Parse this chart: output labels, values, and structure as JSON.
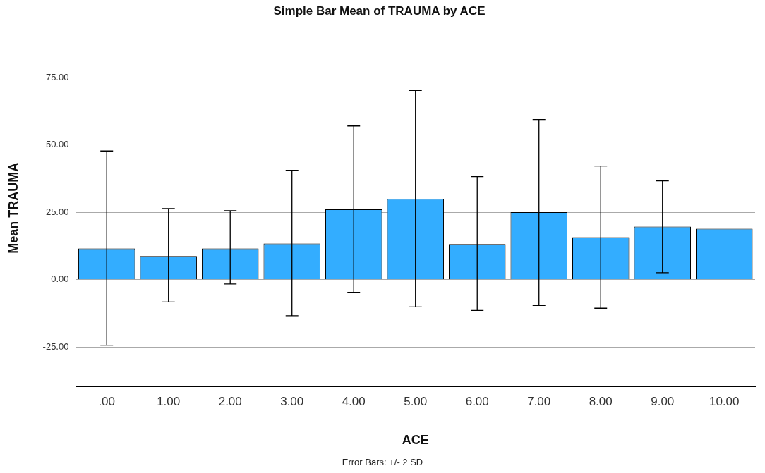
{
  "chart_data": {
    "type": "bar",
    "title": "Simple Bar Mean of TRAUMA by ACE",
    "xlabel": "ACE",
    "ylabel": "Mean TRAUMA",
    "categories": [
      ".00",
      "1.00",
      "2.00",
      "3.00",
      "4.00",
      "5.00",
      "6.00",
      "7.00",
      "8.00",
      "9.00",
      "10.00"
    ],
    "values": [
      11.6,
      8.8,
      11.6,
      13.4,
      26.1,
      30.0,
      13.2,
      25.1,
      15.8,
      19.7,
      18.9
    ],
    "errors": [
      [
        -24.3,
        47.8
      ],
      [
        -8.3,
        26.4
      ],
      [
        -1.6,
        25.6
      ],
      [
        -13.4,
        40.6
      ],
      [
        -4.7,
        57.1
      ],
      [
        -10.1,
        70.3
      ],
      [
        -11.4,
        38.3
      ],
      [
        -9.6,
        59.5
      ],
      [
        -10.6,
        42.2
      ],
      [
        2.6,
        36.7
      ],
      null
    ],
    "color": "#33adff",
    "ylim": [
      -39.6,
      92.8
    ],
    "yticks": [
      {
        "value": -25,
        "label": "-25.00"
      },
      {
        "value": 0,
        "label": "0.00"
      },
      {
        "value": 25,
        "label": "25.00"
      },
      {
        "value": 50,
        "label": "50.00"
      },
      {
        "value": 75,
        "label": "75.00"
      }
    ],
    "grid": "y",
    "annotations": [
      "Error Bars: +/- 2 SD"
    ]
  }
}
